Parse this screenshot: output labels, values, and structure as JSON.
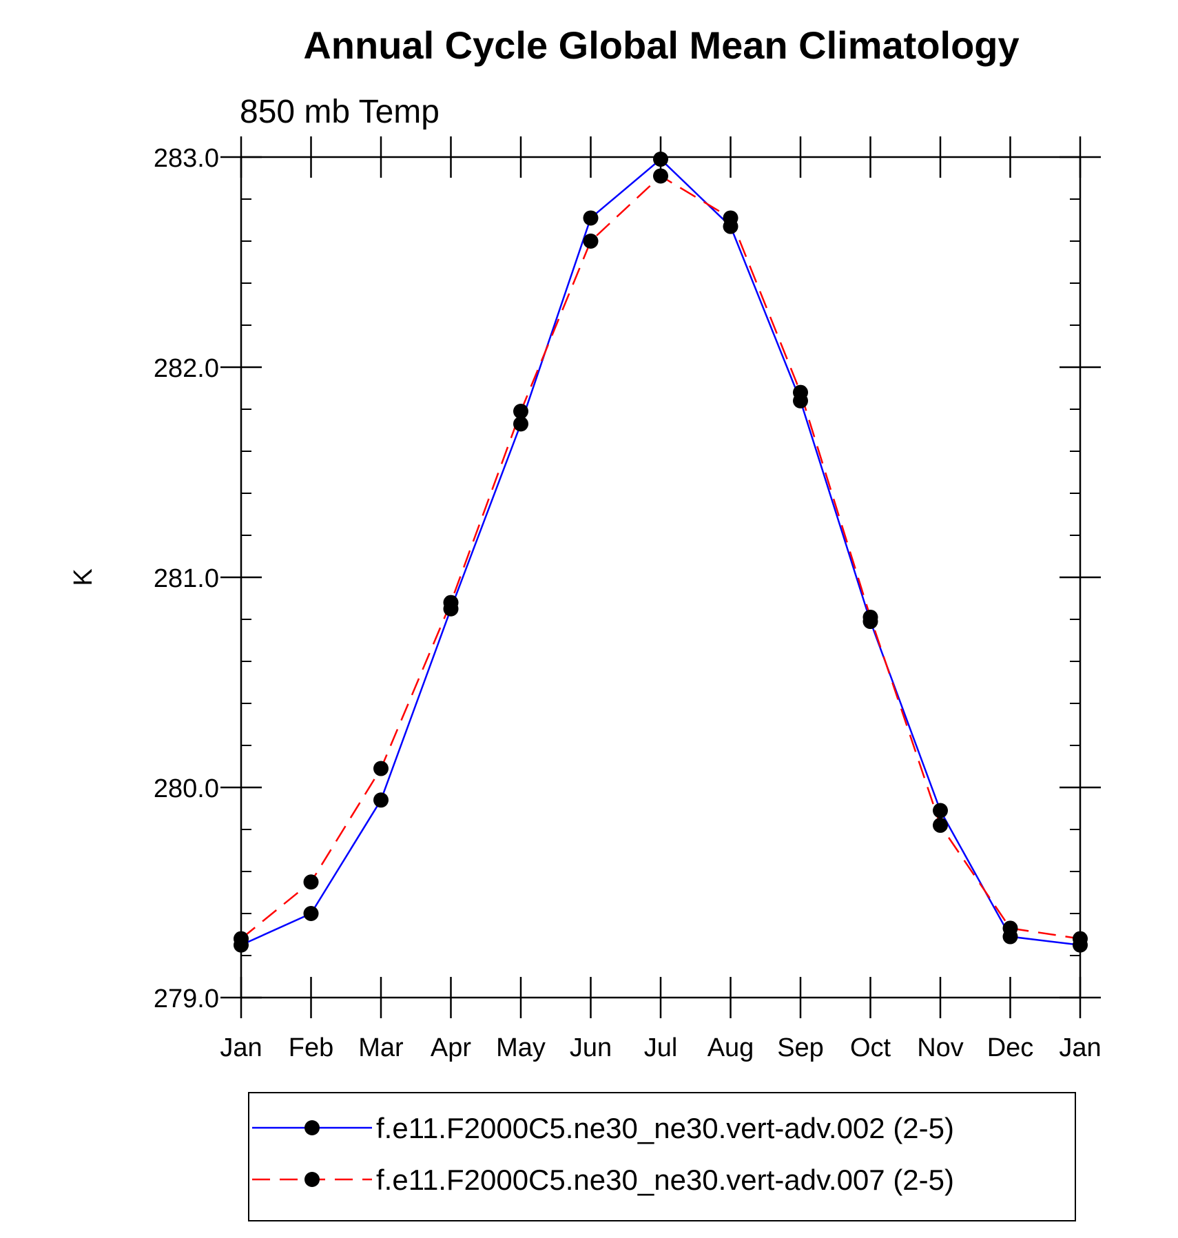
{
  "chart_data": {
    "type": "line",
    "title": "Annual Cycle Global Mean Climatology",
    "subtitle": "850 mb Temp",
    "xlabel": "",
    "ylabel": "K",
    "categories": [
      "Jan",
      "Feb",
      "Mar",
      "Apr",
      "May",
      "Jun",
      "Jul",
      "Aug",
      "Sep",
      "Oct",
      "Nov",
      "Dec",
      "Jan"
    ],
    "ylim": [
      279.0,
      283.0
    ],
    "yticks": [
      "279.0",
      "280.0",
      "281.0",
      "282.0",
      "283.0"
    ],
    "y_minor_step": 0.2,
    "grid": false,
    "legend_position": "bottom",
    "series": [
      {
        "name": "f.e11.F2000C5.ne30_ne30.vert-adv.002 (2-5)",
        "color": "#0000ff",
        "dash": "solid",
        "marker": "filled-circle",
        "values": [
          279.25,
          279.4,
          279.94,
          280.85,
          281.73,
          282.71,
          282.99,
          282.67,
          281.84,
          280.79,
          279.89,
          279.29,
          279.25
        ]
      },
      {
        "name": "f.e11.F2000C5.ne30_ne30.vert-adv.007 (2-5)",
        "color": "#ff0000",
        "dash": "dashed",
        "marker": "filled-circle",
        "values": [
          279.28,
          279.55,
          280.09,
          280.88,
          281.79,
          282.6,
          282.91,
          282.71,
          281.88,
          280.81,
          279.82,
          279.33,
          279.28
        ]
      }
    ]
  }
}
